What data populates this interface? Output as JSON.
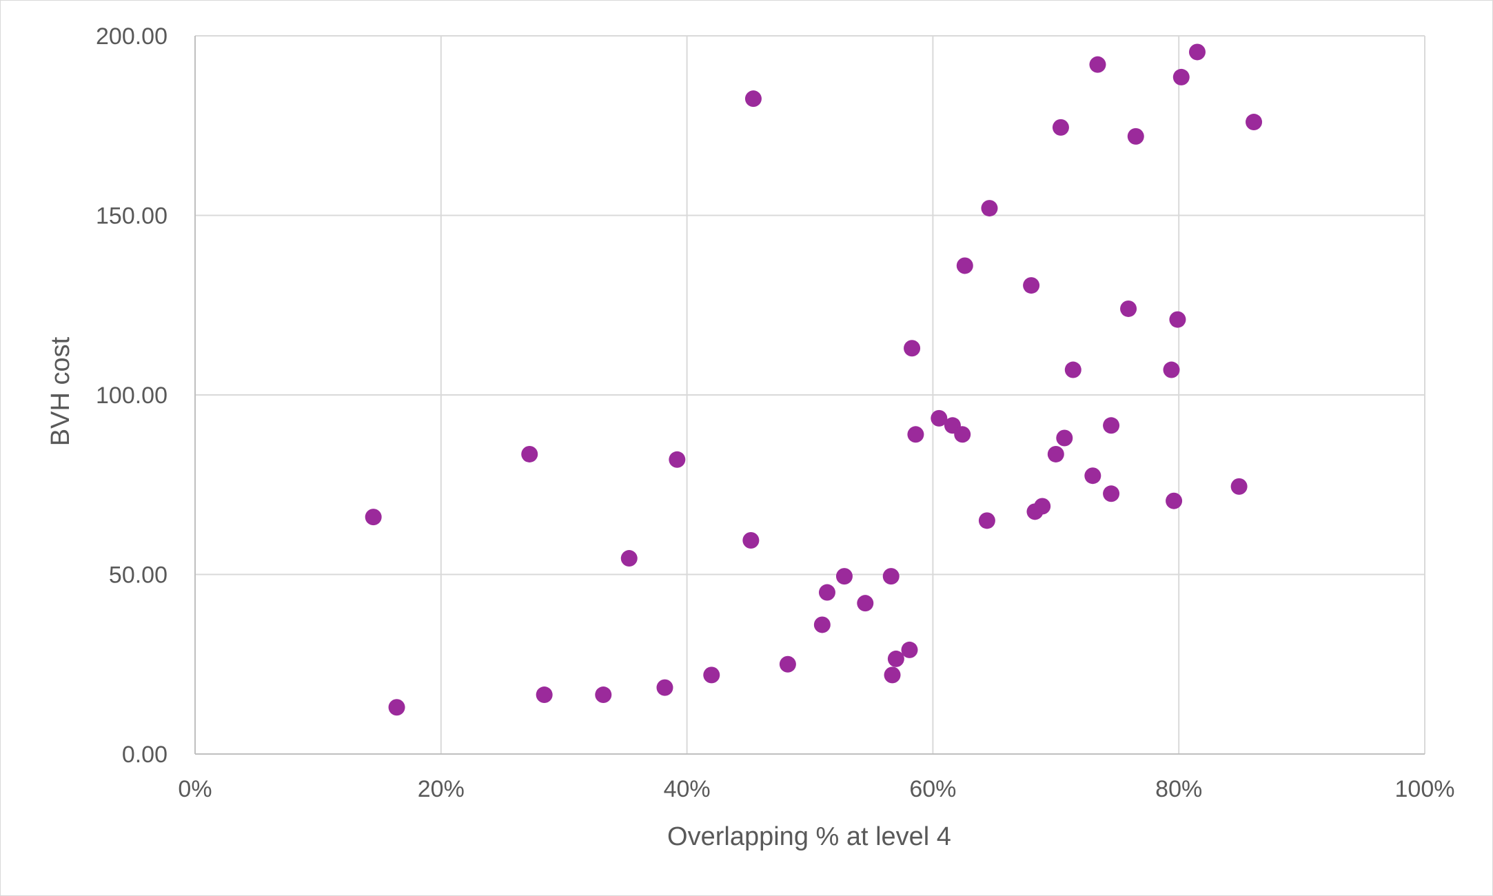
{
  "chart_data": {
    "type": "scatter",
    "title": "",
    "xlabel": "Overlapping % at level 4",
    "ylabel": "BVH cost",
    "xlim": [
      0,
      1
    ],
    "ylim": [
      0,
      200
    ],
    "x_ticks": [
      0,
      0.2,
      0.4,
      0.6,
      0.8,
      1.0
    ],
    "x_tick_labels": [
      "0%",
      "20%",
      "40%",
      "60%",
      "80%",
      "100%"
    ],
    "y_ticks": [
      0,
      50,
      100,
      150,
      200
    ],
    "y_tick_labels": [
      "0.00",
      "50.00",
      "100.00",
      "150.00",
      "200.00"
    ],
    "grid": true,
    "legend": "none",
    "marker_color": "#9b2a9b",
    "series": [
      {
        "points": [
          [
            0.145,
            66
          ],
          [
            0.164,
            13
          ],
          [
            0.272,
            83.5
          ],
          [
            0.284,
            16.5
          ],
          [
            0.332,
            16.5
          ],
          [
            0.353,
            54.5
          ],
          [
            0.382,
            18.5
          ],
          [
            0.392,
            82
          ],
          [
            0.42,
            22
          ],
          [
            0.452,
            59.5
          ],
          [
            0.454,
            182.5
          ],
          [
            0.482,
            25
          ],
          [
            0.51,
            36
          ],
          [
            0.514,
            45
          ],
          [
            0.528,
            49.5
          ],
          [
            0.545,
            42
          ],
          [
            0.566,
            49.5
          ],
          [
            0.567,
            22
          ],
          [
            0.57,
            26.5
          ],
          [
            0.581,
            29
          ],
          [
            0.583,
            113
          ],
          [
            0.586,
            89
          ],
          [
            0.605,
            93.5
          ],
          [
            0.616,
            91.5
          ],
          [
            0.624,
            89
          ],
          [
            0.626,
            136
          ],
          [
            0.644,
            65
          ],
          [
            0.646,
            152
          ],
          [
            0.68,
            130.5
          ],
          [
            0.683,
            67.5
          ],
          [
            0.689,
            69
          ],
          [
            0.7,
            83.5
          ],
          [
            0.704,
            174.5
          ],
          [
            0.707,
            88
          ],
          [
            0.714,
            107
          ],
          [
            0.73,
            77.5
          ],
          [
            0.734,
            192
          ],
          [
            0.745,
            72.5
          ],
          [
            0.745,
            91.5
          ],
          [
            0.759,
            124
          ],
          [
            0.765,
            172
          ],
          [
            0.794,
            107
          ],
          [
            0.796,
            70.5
          ],
          [
            0.799,
            121
          ],
          [
            0.802,
            188.5
          ],
          [
            0.815,
            195.5
          ],
          [
            0.849,
            74.5
          ],
          [
            0.861,
            176
          ]
        ]
      }
    ]
  }
}
